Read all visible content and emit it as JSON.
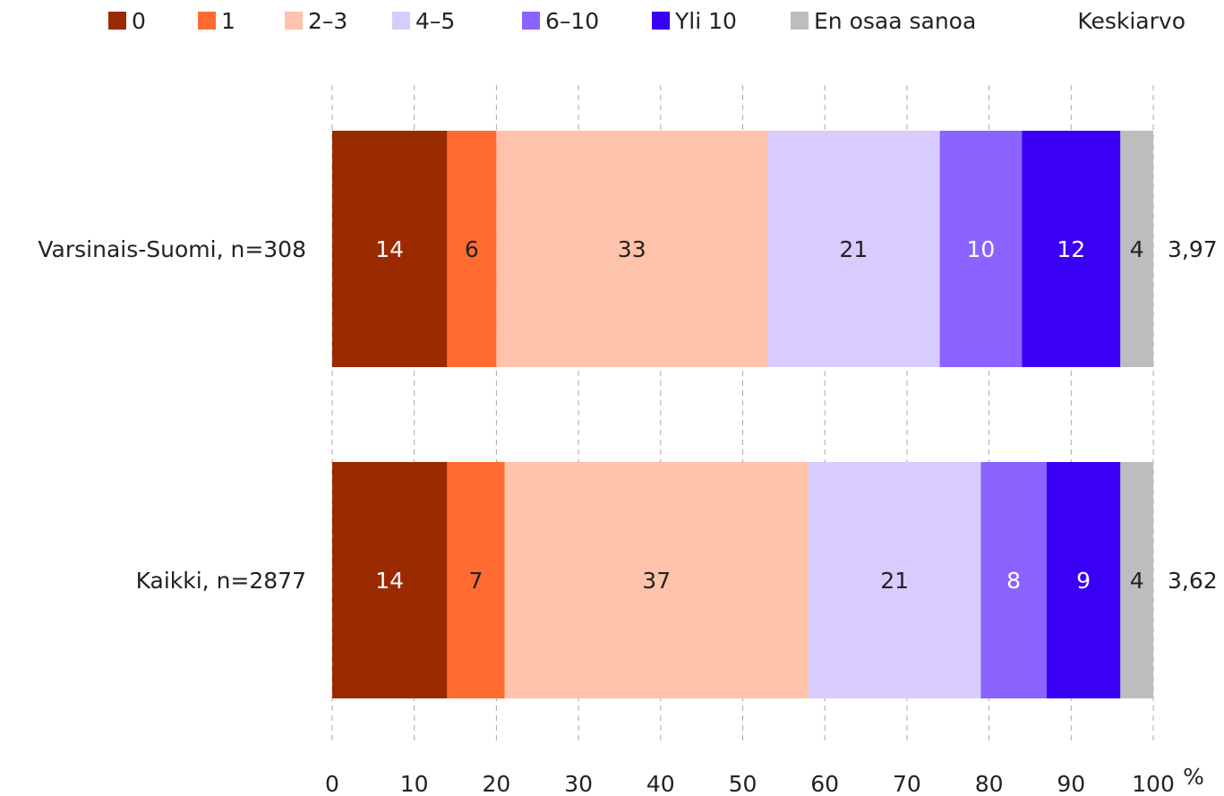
{
  "chart_data": {
    "type": "bar",
    "orientation": "horizontal",
    "stacked": true,
    "categories": [
      "Varsinais-Suomi, n=308",
      "Kaikki, n=2877"
    ],
    "series": [
      {
        "name": "0",
        "values": [
          14,
          14
        ],
        "color": "#9a2a00",
        "label_color": "#ffffff"
      },
      {
        "name": "1",
        "values": [
          6,
          7
        ],
        "color": "#ff6b30",
        "label_color": "#222222"
      },
      {
        "name": "2–3",
        "values": [
          33,
          37
        ],
        "color": "#ffc2aa",
        "label_color": "#222222"
      },
      {
        "name": "4–5",
        "values": [
          21,
          21
        ],
        "color": "#d8ccff",
        "label_color": "#222222"
      },
      {
        "name": "6–10",
        "values": [
          10,
          8
        ],
        "color": "#8b63ff",
        "label_color": "#ffffff"
      },
      {
        "name": "Yli 10",
        "values": [
          12,
          9
        ],
        "color": "#3a00f5",
        "label_color": "#ffffff"
      },
      {
        "name": "En osaa sanoa",
        "values": [
          4,
          4
        ],
        "color": "#bdbdbd",
        "label_color": "#222222"
      }
    ],
    "mean_header": "Keskiarvo",
    "means": [
      "3,97",
      "3,62"
    ],
    "x_ticks": [
      "0",
      "10",
      "20",
      "30",
      "40",
      "50",
      "60",
      "70",
      "80",
      "90",
      "100"
    ],
    "x_unit": "%",
    "xlim": [
      0,
      100
    ],
    "grid": "vertical dashed",
    "legend_position": "top"
  }
}
